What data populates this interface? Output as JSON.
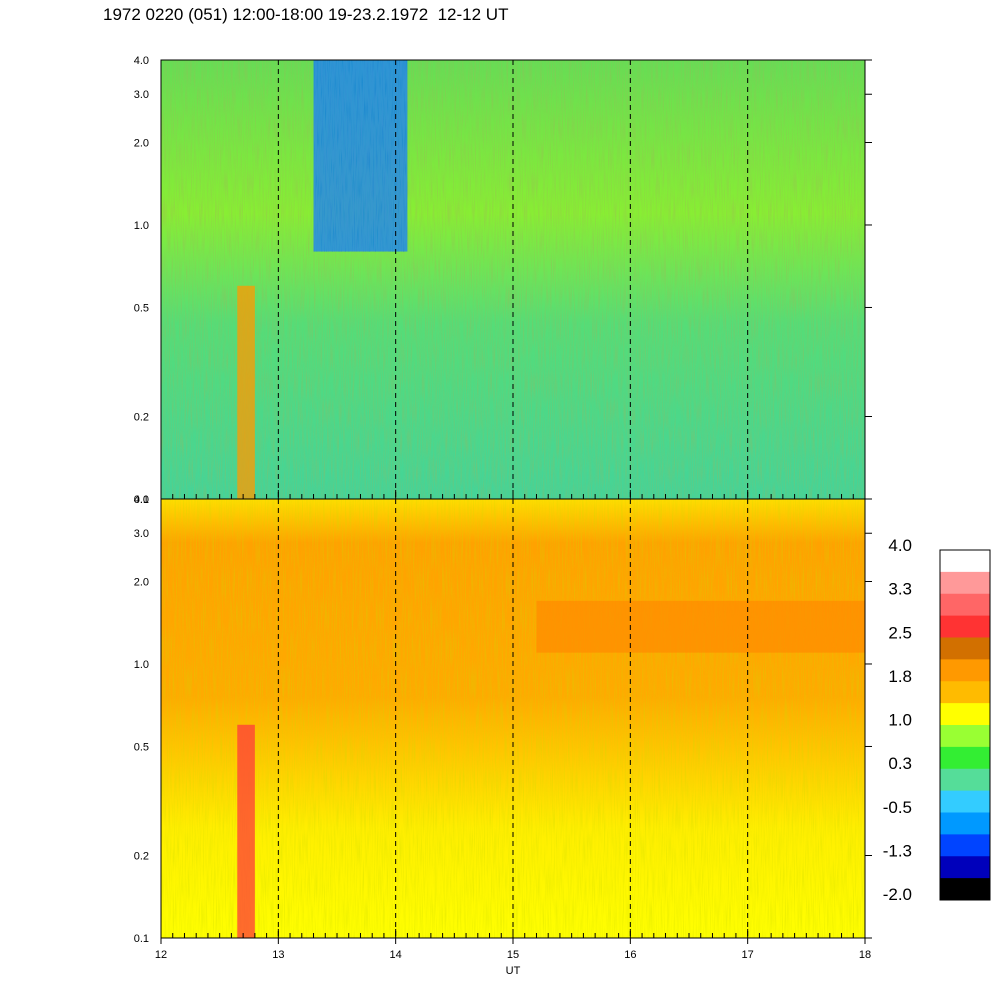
{
  "title": "1972 0220 (051) 12:00-18:00 19-23.2.1972  12-12 UT",
  "chart_data": [
    {
      "type": "heatmap",
      "panel": "upper",
      "x_range": [
        12,
        18
      ],
      "x_dashed_lines": [
        13,
        14,
        15,
        16,
        17
      ],
      "y_scale": "log",
      "y_range": [
        0.1,
        4.0
      ],
      "y_tick_labels": [
        "4.0",
        "3.0",
        "2.0",
        "1.0",
        "0.5",
        "0.2",
        "0.1"
      ],
      "y_tick_values": [
        4.0,
        3.0,
        2.0,
        1.0,
        0.5,
        0.2,
        0.1
      ],
      "x_labels_shown": false,
      "typical_level": "0.3 to 1.0",
      "features": [
        {
          "description": "low-level band (about -0.5 to -1.3)",
          "x": [
            13.3,
            14.1
          ],
          "y": [
            0.8,
            4.0
          ]
        },
        {
          "description": "high-level vertical streak (about 1.8)",
          "x": [
            12.65,
            12.8
          ],
          "y": [
            0.1,
            0.6
          ]
        }
      ]
    },
    {
      "type": "heatmap",
      "panel": "lower",
      "x_range": [
        12,
        18
      ],
      "x_dashed_lines": [
        13,
        14,
        15,
        16,
        17
      ],
      "y_scale": "log",
      "y_range": [
        0.1,
        4.0
      ],
      "y_tick_labels": [
        "4.0",
        "3.0",
        "2.0",
        "1.0",
        "0.5",
        "0.2",
        "0.1"
      ],
      "y_tick_values": [
        4.0,
        3.0,
        2.0,
        1.0,
        0.5,
        0.2,
        0.1
      ],
      "xlabel": "UT",
      "x_tick_labels": [
        "12",
        "13",
        "14",
        "15",
        "16",
        "17",
        "18"
      ],
      "x_tick_values": [
        12,
        13,
        14,
        15,
        16,
        17,
        18
      ],
      "typical_level": "1.0 to 1.8",
      "features": [
        {
          "description": "high-level vertical streak (about 2.5 to 3.3)",
          "x": [
            12.65,
            12.8
          ],
          "y": [
            0.1,
            0.6
          ]
        },
        {
          "description": "enhanced band (about 1.8 to 2.5)",
          "x": [
            15.2,
            18.0
          ],
          "y": [
            1.1,
            1.7
          ]
        }
      ]
    }
  ],
  "colorbar": {
    "tick_labels": [
      "4.0",
      "3.3",
      "2.5",
      "1.8",
      "1.0",
      "0.3",
      "-0.5",
      "-1.3",
      "-2.0"
    ],
    "colors_top_to_bottom": [
      "#ffffff",
      "#ff9999",
      "#ff6666",
      "#ff3333",
      "#d27000",
      "#ff9900",
      "#ffbb00",
      "#ffff00",
      "#99ff33",
      "#33ee33",
      "#55dd99",
      "#33ccff",
      "#0099ff",
      "#0044ff",
      "#0000bb",
      "#000000"
    ]
  }
}
